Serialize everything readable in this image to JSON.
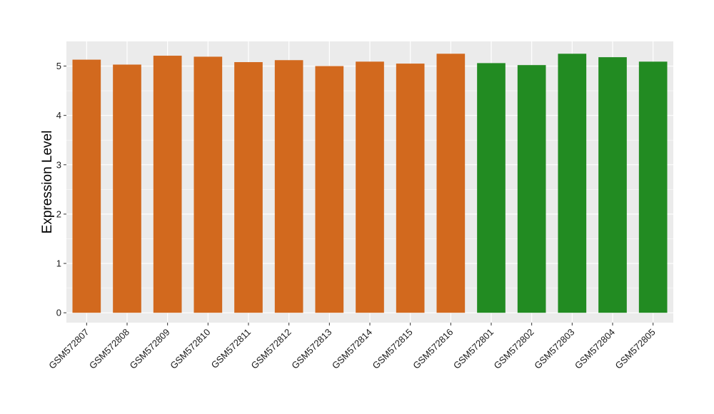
{
  "chart_data": {
    "type": "bar",
    "title": "",
    "xlabel": "",
    "ylabel": "Expression Level",
    "ylim": [
      -0.2,
      5.5
    ],
    "yticks": [
      0,
      1,
      2,
      3,
      4,
      5
    ],
    "grid": true,
    "legend": "none",
    "colors": {
      "group_a": "#D2691E",
      "group_b": "#228B22",
      "panel_bg": "#EBEBEB",
      "grid": "#FFFFFF"
    },
    "categories": [
      "GSM572807",
      "GSM572808",
      "GSM572809",
      "GSM572810",
      "GSM572811",
      "GSM572812",
      "GSM572813",
      "GSM572814",
      "GSM572815",
      "GSM572816",
      "GSM572801",
      "GSM572802",
      "GSM572803",
      "GSM572804",
      "GSM572805"
    ],
    "values": [
      5.13,
      5.03,
      5.21,
      5.19,
      5.08,
      5.12,
      5.0,
      5.09,
      5.05,
      5.25,
      5.06,
      5.02,
      5.25,
      5.18,
      5.09
    ],
    "groups": [
      "a",
      "a",
      "a",
      "a",
      "a",
      "a",
      "a",
      "a",
      "a",
      "a",
      "b",
      "b",
      "b",
      "b",
      "b"
    ]
  }
}
